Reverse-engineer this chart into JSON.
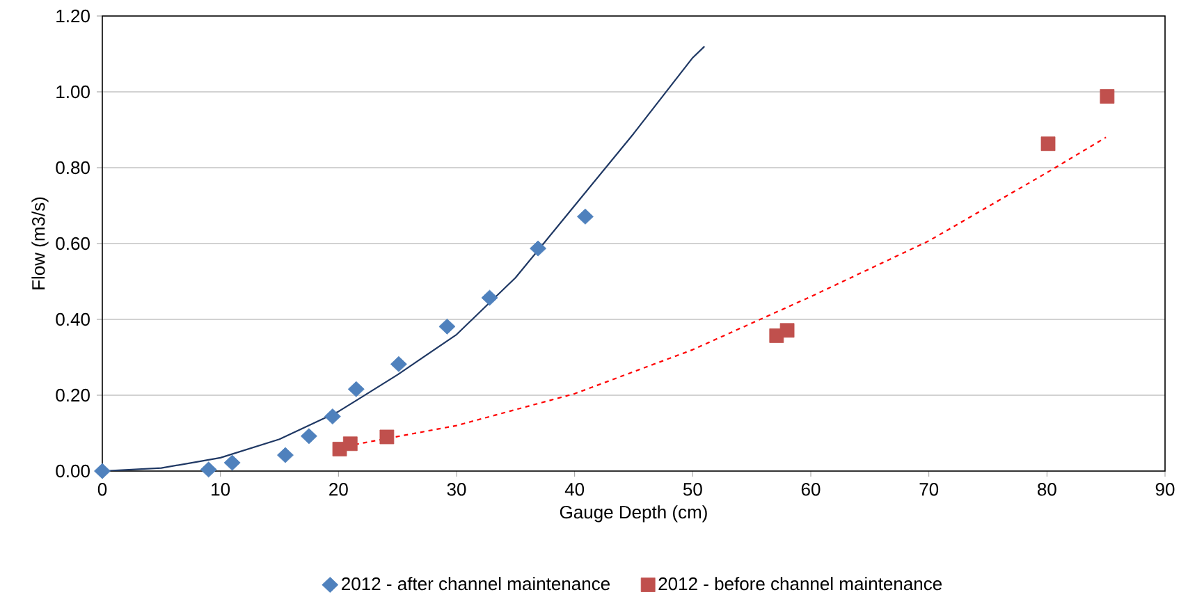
{
  "chart_data": {
    "type": "scatter",
    "xlabel": "Gauge Depth (cm)",
    "ylabel": "Flow (m3/s)",
    "xlim": [
      0,
      90
    ],
    "xticks": [
      0,
      10,
      20,
      30,
      40,
      50,
      60,
      70,
      80,
      90
    ],
    "ylim": [
      0,
      1.2
    ],
    "yticks": [
      {
        "value": 0,
        "label": "0.00"
      },
      {
        "value": 0.2,
        "label": "0.20"
      },
      {
        "value": 0.4,
        "label": "0.40"
      },
      {
        "value": 0.6,
        "label": "0.60"
      },
      {
        "value": 0.8,
        "label": "0.80"
      },
      {
        "value": 1.0,
        "label": "1.00"
      },
      {
        "value": 1.2,
        "label": "1.20"
      }
    ],
    "grid": "y",
    "legend": "bottom",
    "series": [
      {
        "name": "2012 - after channel maintenance",
        "marker": "diamond",
        "color": "#4f81bd",
        "x": [
          0,
          9,
          11,
          15.5,
          17.5,
          19.5,
          21.5,
          25.1,
          29.2,
          32.8,
          36.9,
          40.9
        ],
        "values": [
          0,
          0.004,
          0.022,
          0.042,
          0.092,
          0.144,
          0.216,
          0.282,
          0.381,
          0.457,
          0.587,
          0.671
        ]
      },
      {
        "name": "2012 - before channel maintenance",
        "marker": "square",
        "color": "#c0504d",
        "x": [
          20.1,
          21,
          24.1,
          57.1,
          58,
          80.1,
          85.1
        ],
        "values": [
          0.058,
          0.072,
          0.09,
          0.357,
          0.371,
          0.863,
          0.988
        ]
      },
      {
        "type": "line",
        "marker": "none",
        "line_style": "solid",
        "color": "#1f3864",
        "x": [
          0,
          5,
          10,
          15,
          20,
          25,
          30,
          35,
          40,
          45,
          50,
          51
        ],
        "values": [
          0,
          0.008,
          0.035,
          0.084,
          0.157,
          0.254,
          0.36,
          0.51,
          0.7,
          0.89,
          1.09,
          1.12
        ]
      },
      {
        "type": "line",
        "marker": "none",
        "line_style": "dashed",
        "color": "#ff0000",
        "x": [
          20,
          30,
          40,
          50,
          60,
          70,
          80,
          85
        ],
        "values": [
          0.062,
          0.12,
          0.204,
          0.32,
          0.46,
          0.607,
          0.787,
          0.88
        ]
      }
    ]
  }
}
